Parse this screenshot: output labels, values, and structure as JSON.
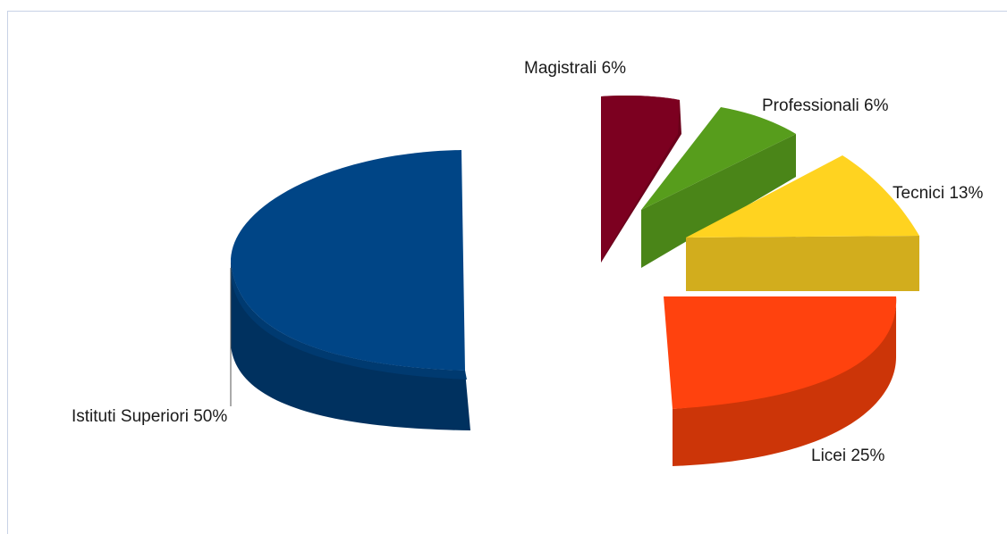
{
  "chart_data": {
    "type": "pie",
    "title": "",
    "legend": "none",
    "slices": [
      {
        "label": "Istituti Superiori 50%",
        "category": "Istituti Superiori",
        "value": 50,
        "color": "#004586"
      },
      {
        "label": "Licei 25%",
        "category": "Licei",
        "value": 25,
        "color": "#ff420e"
      },
      {
        "label": "Tecnici 13%",
        "category": "Tecnici",
        "value": 13,
        "color": "#ffd320"
      },
      {
        "label": "Professionali 6%",
        "category": "Professionali",
        "value": 6,
        "color": "#579d1c"
      },
      {
        "label": "Magistrali 6%",
        "category": "Magistrali",
        "value": 6,
        "color": "#7e0021"
      }
    ]
  }
}
